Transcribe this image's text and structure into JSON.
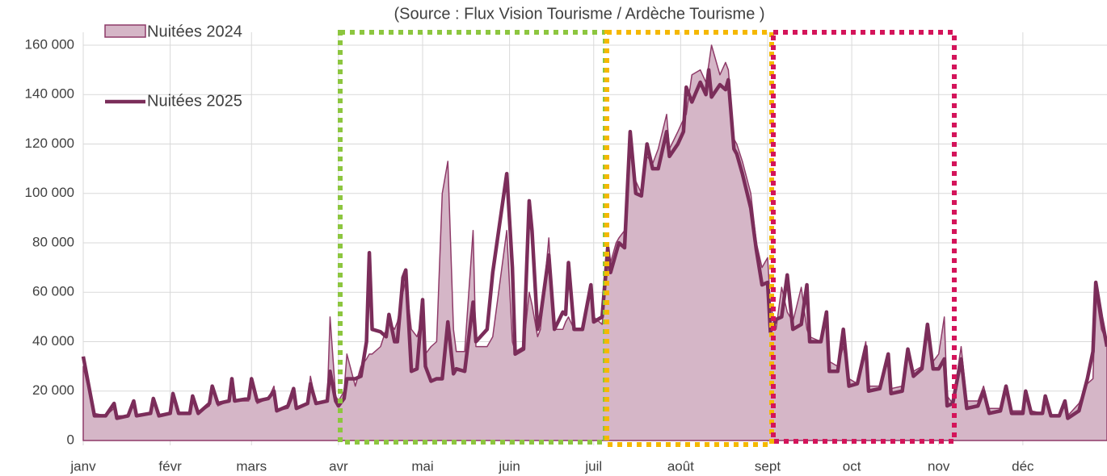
{
  "chart_data": {
    "type": "area-line",
    "title": "(Source : Flux Vision Tourisme / Ardèche Tourisme )",
    "x": [
      0,
      2,
      4,
      8,
      11,
      12,
      16,
      18,
      19,
      24,
      25,
      27,
      31,
      32,
      34,
      38,
      39,
      41,
      45,
      46,
      48,
      52,
      53,
      54,
      59,
      60,
      62,
      66,
      68,
      69,
      73,
      75,
      76,
      80,
      81,
      83,
      87,
      88,
      90,
      91,
      93,
      94,
      97,
      99,
      101,
      102,
      103,
      106,
      108,
      109,
      111,
      112,
      114,
      115,
      117,
      119,
      121,
      122,
      124,
      126,
      128,
      130,
      132,
      133,
      136,
      139,
      140,
      144,
      146,
      151,
      153,
      154,
      157,
      159,
      160,
      162,
      163,
      166,
      168,
      171,
      172,
      173,
      175,
      178,
      181,
      182,
      185,
      187,
      188,
      190,
      191,
      193,
      195,
      197,
      199,
      201,
      203,
      205,
      208,
      209,
      212,
      214,
      215,
      217,
      220,
      222,
      223,
      224,
      227,
      229,
      230,
      232,
      233,
      235,
      238,
      240,
      242,
      244,
      245,
      247,
      249,
      251,
      253,
      256,
      258,
      259,
      263,
      265,
      266,
      269,
      271,
      273,
      276,
      279,
      280,
      284,
      287,
      288,
      292,
      294,
      296,
      299,
      301,
      303,
      305,
      307,
      308,
      310,
      313,
      315,
      319,
      321,
      323,
      327,
      329,
      331,
      335,
      336,
      338,
      342,
      343,
      345,
      348,
      350,
      351,
      355,
      358,
      360,
      361,
      363,
      365
    ],
    "series": [
      {
        "name": "Nuitées 2024",
        "kind": "area",
        "color": "#d5b6c7",
        "stroke": "#8e3a68",
        "values": [
          30000,
          20000,
          11000,
          10000,
          13000,
          10000,
          10000,
          14000,
          10000,
          11000,
          16000,
          10000,
          11000,
          17000,
          11000,
          11000,
          17000,
          11000,
          14000,
          22000,
          14000,
          16000,
          24000,
          16000,
          16000,
          24000,
          15000,
          17000,
          22000,
          12000,
          13000,
          18000,
          13000,
          15000,
          26000,
          15000,
          16000,
          50000,
          18000,
          16000,
          20000,
          35000,
          22000,
          30000,
          33000,
          35000,
          35000,
          38000,
          45000,
          48000,
          45000,
          48000,
          60000,
          65000,
          45000,
          42000,
          50000,
          35000,
          38000,
          40000,
          100000,
          113000,
          45000,
          36000,
          36000,
          85000,
          38000,
          38000,
          42000,
          85000,
          40000,
          36000,
          38000,
          60000,
          55000,
          42000,
          45000,
          82000,
          45000,
          45000,
          48000,
          50000,
          45000,
          45000,
          60000,
          50000,
          47000,
          70000,
          72000,
          80000,
          82000,
          85000,
          122000,
          105000,
          100000,
          115000,
          112000,
          118000,
          132000,
          118000,
          125000,
          130000,
          132000,
          148000,
          150000,
          145000,
          152000,
          160000,
          148000,
          153000,
          150000,
          122000,
          120000,
          113000,
          100000,
          80000,
          70000,
          74000,
          55000,
          45000,
          62000,
          52000,
          48000,
          62000,
          45000,
          42000,
          40000,
          50000,
          32000,
          30000,
          38000,
          25000,
          23000,
          40000,
          22000,
          22000,
          32000,
          21000,
          22000,
          35000,
          28000,
          30000,
          42000,
          32000,
          35000,
          50000,
          18000,
          15000,
          38000,
          16000,
          16000,
          22000,
          13000,
          13000,
          20000,
          12000,
          12000,
          17000,
          12000,
          11000,
          16000,
          10000,
          10000,
          14000,
          10000,
          15000,
          23000,
          25000,
          60000,
          45000,
          40000
        ]
      },
      {
        "name": "Nuitées 2025",
        "kind": "line",
        "color": "#7b2d5a",
        "values": [
          34000,
          22000,
          10000,
          10000,
          15000,
          9000,
          10000,
          16000,
          10000,
          11000,
          17000,
          10000,
          11000,
          19000,
          11000,
          11000,
          18000,
          11000,
          15000,
          22000,
          15000,
          16000,
          25000,
          16000,
          17000,
          25000,
          16000,
          17000,
          20000,
          12000,
          14000,
          21000,
          13000,
          15000,
          23000,
          15000,
          16000,
          28000,
          16000,
          14000,
          17000,
          25000,
          25000,
          26000,
          40000,
          76000,
          45000,
          44000,
          42000,
          51000,
          40000,
          40000,
          66000,
          69000,
          28000,
          29000,
          57000,
          30000,
          24000,
          25000,
          25000,
          48000,
          27000,
          29000,
          28000,
          56000,
          40000,
          45000,
          68000,
          108000,
          70000,
          35000,
          37000,
          97000,
          85000,
          45000,
          50000,
          75000,
          45000,
          52000,
          51000,
          72000,
          45000,
          45000,
          63000,
          48000,
          50000,
          78000,
          68000,
          76000,
          80000,
          78000,
          125000,
          100000,
          99000,
          120000,
          110000,
          110000,
          125000,
          115000,
          120000,
          125000,
          143000,
          137000,
          145000,
          140000,
          150000,
          139000,
          144000,
          142000,
          146000,
          118000,
          116000,
          108000,
          94000,
          77000,
          63000,
          64000,
          44000,
          49000,
          50000,
          67000,
          45000,
          47000,
          63000,
          40000,
          40000,
          52000,
          28000,
          28000,
          45000,
          22000,
          23000,
          38000,
          20000,
          21000,
          35000,
          19000,
          20000,
          37000,
          26000,
          29000,
          47000,
          29000,
          29000,
          33000,
          14000,
          15000,
          33000,
          13000,
          14000,
          20000,
          11000,
          12000,
          22000,
          11000,
          11000,
          20000,
          11000,
          11000,
          18000,
          10000,
          10000,
          16000,
          9000,
          12000,
          25000,
          36000,
          64000,
          50000,
          38000
        ]
      }
    ],
    "xlim": [
      0,
      365
    ],
    "xticks": [
      {
        "value": 0,
        "label": "janv"
      },
      {
        "value": 31,
        "label": "févr"
      },
      {
        "value": 60,
        "label": "mars"
      },
      {
        "value": 91,
        "label": "avr"
      },
      {
        "value": 121,
        "label": "mai"
      },
      {
        "value": 152,
        "label": "juin"
      },
      {
        "value": 182,
        "label": "juil"
      },
      {
        "value": 213,
        "label": "août"
      },
      {
        "value": 244,
        "label": "sept"
      },
      {
        "value": 274,
        "label": "oct"
      },
      {
        "value": 305,
        "label": "nov"
      },
      {
        "value": 335,
        "label": "déc"
      }
    ],
    "ylim": [
      0,
      160000
    ],
    "yticks": [
      0,
      {
        "value": 20000,
        "label": "20 000"
      },
      {
        "value": 40000,
        "label": "40 000"
      },
      {
        "value": 60000,
        "label": "60 000"
      },
      {
        "value": 80000,
        "label": "80 000"
      },
      {
        "value": 100000,
        "label": "100 000"
      },
      {
        "value": 120000,
        "label": "120 000"
      },
      {
        "value": 140000,
        "label": "140 000"
      },
      {
        "value": 160000,
        "label": "160 000"
      }
    ],
    "grid": true
  }
}
